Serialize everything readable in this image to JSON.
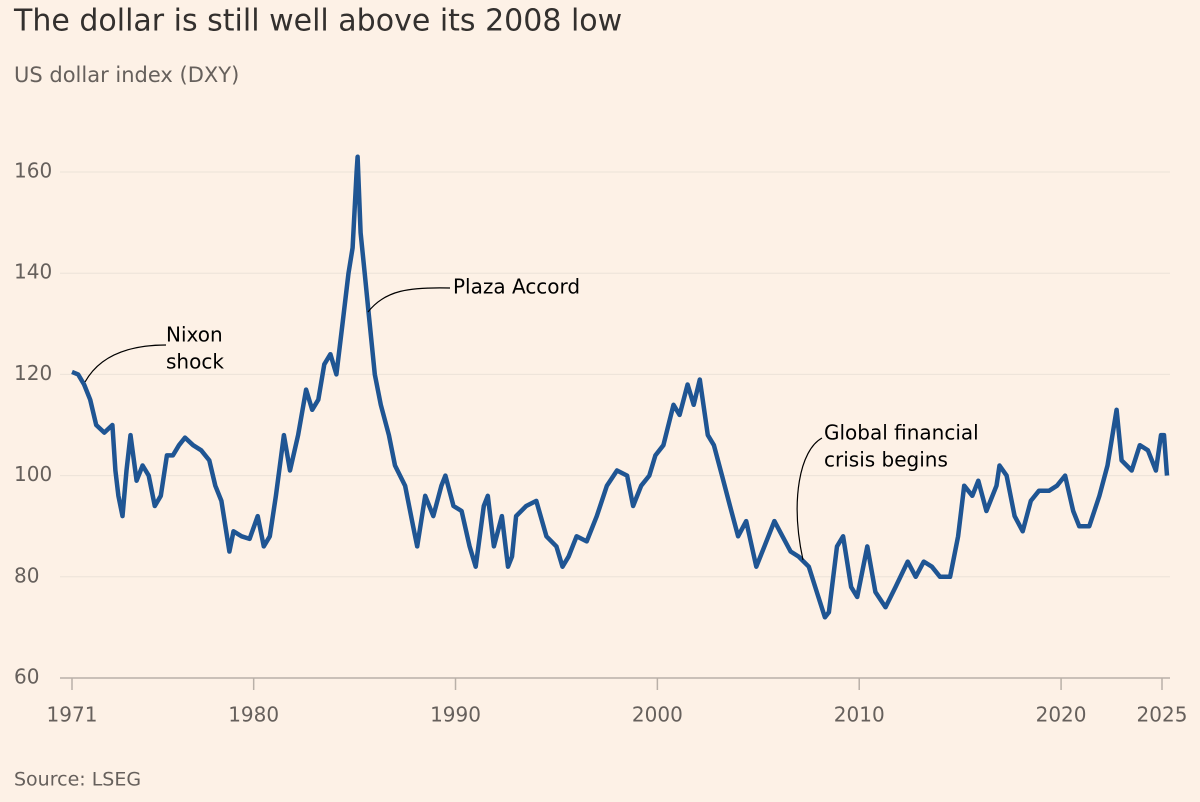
{
  "chart_data": {
    "type": "line",
    "title": "The dollar is still well above its 2008 low",
    "subtitle": "US dollar index (DXY)",
    "source": "Source: LSEG",
    "annotations": [
      {
        "lines": [
          "Nixon",
          "shock"
        ]
      },
      {
        "lines": [
          "Plaza Accord"
        ]
      },
      {
        "lines": [
          "Global financial",
          "crisis begins"
        ]
      }
    ],
    "xlim": [
      1971,
      2025
    ],
    "xticks": [
      1971,
      1980,
      1990,
      2000,
      2010,
      2020,
      2025
    ],
    "ylim": [
      60,
      160
    ],
    "yticks": [
      60,
      80,
      100,
      120,
      140,
      160
    ],
    "grid": true,
    "series": [
      {
        "name": "DXY",
        "color": "#1f5593",
        "x": [
          1971.0,
          1971.3,
          1971.6,
          1971.9,
          1972.2,
          1972.6,
          1973.0,
          1973.15,
          1973.3,
          1973.5,
          1973.7,
          1973.9,
          1974.2,
          1974.5,
          1974.8,
          1975.1,
          1975.4,
          1975.7,
          1976.0,
          1976.3,
          1976.6,
          1977.0,
          1977.4,
          1977.8,
          1978.1,
          1978.4,
          1978.8,
          1979.0,
          1979.4,
          1979.8,
          1980.2,
          1980.5,
          1980.8,
          1981.1,
          1981.5,
          1981.8,
          1982.2,
          1982.6,
          1982.9,
          1983.2,
          1983.5,
          1983.8,
          1984.1,
          1984.4,
          1984.7,
          1984.9,
          1985.1,
          1985.15,
          1985.3,
          1985.5,
          1985.7,
          1986.0,
          1986.3,
          1986.7,
          1987.0,
          1987.5,
          1987.9,
          1988.1,
          1988.5,
          1988.9,
          1989.3,
          1989.5,
          1989.9,
          1990.3,
          1990.7,
          1991.0,
          1991.4,
          1991.6,
          1991.9,
          1992.3,
          1992.6,
          1992.8,
          1993.0,
          1993.5,
          1994.0,
          1994.5,
          1995.0,
          1995.3,
          1995.6,
          1996.0,
          1996.5,
          1997.0,
          1997.5,
          1998.0,
          1998.5,
          1998.8,
          1999.2,
          1999.6,
          1999.9,
          2000.3,
          2000.8,
          2001.1,
          2001.5,
          2001.8,
          2002.1,
          2002.5,
          2002.8,
          2003.2,
          2003.6,
          2004.0,
          2004.4,
          2004.9,
          2005.3,
          2005.8,
          2006.2,
          2006.6,
          2007.0,
          2007.5,
          2007.9,
          2008.3,
          2008.5,
          2008.9,
          2009.2,
          2009.6,
          2009.9,
          2010.4,
          2010.8,
          2011.3,
          2011.8,
          2012.4,
          2012.8,
          2013.2,
          2013.6,
          2014.0,
          2014.5,
          2014.9,
          2015.2,
          2015.6,
          2015.9,
          2016.3,
          2016.8,
          2016.95,
          2017.3,
          2017.7,
          2018.1,
          2018.5,
          2018.9,
          2019.4,
          2019.8,
          2020.2,
          2020.6,
          2020.9,
          2021.4,
          2021.9,
          2022.3,
          2022.75,
          2023.0,
          2023.5,
          2023.9,
          2024.3,
          2024.7,
          2024.95,
          2025.1,
          2025.25
        ],
        "values": [
          120.5,
          120,
          118,
          115,
          110,
          108.5,
          110,
          101,
          96,
          92,
          101,
          108,
          99,
          102,
          100,
          94,
          96,
          104,
          104,
          106,
          107.5,
          106,
          105,
          103,
          98,
          95,
          85,
          89,
          88,
          87.5,
          92,
          86,
          88,
          96,
          108,
          101,
          108,
          117,
          113,
          115,
          122,
          124,
          120,
          130,
          140,
          145,
          160,
          163,
          148,
          140,
          132,
          120,
          114,
          108,
          102,
          98,
          90,
          86,
          96,
          92,
          98,
          100,
          94,
          93,
          86,
          82,
          94,
          96,
          86,
          92,
          82,
          84,
          92,
          94,
          95,
          88,
          86,
          82,
          84,
          88,
          87,
          92,
          98,
          101,
          100,
          94,
          98,
          100,
          104,
          106,
          114,
          112,
          118,
          114,
          119,
          108,
          106,
          100,
          94,
          88,
          91,
          82,
          86,
          91,
          88,
          85,
          84,
          82,
          77,
          72,
          73,
          86,
          88,
          78,
          76,
          86,
          77,
          74,
          78,
          83,
          80,
          83,
          82,
          80,
          80,
          88,
          98,
          96,
          99,
          93,
          98,
          102,
          100,
          92,
          89,
          95,
          97,
          97,
          98,
          100,
          93,
          90,
          90,
          96,
          102,
          113,
          103,
          101,
          106,
          105,
          101,
          108,
          108,
          100
        ]
      }
    ]
  }
}
